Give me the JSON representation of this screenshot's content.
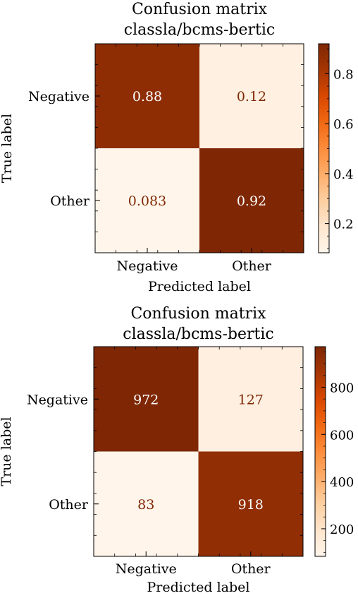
{
  "chart_data": [
    {
      "type": "heatmap",
      "title_lines": [
        "Confusion matrix",
        "classla/bcms-bertic"
      ],
      "xlabel": "Predicted label",
      "ylabel": "True label",
      "x_categories": [
        "Negative",
        "Other"
      ],
      "y_categories": [
        "Negative",
        "Other"
      ],
      "values": [
        [
          0.88,
          0.12
        ],
        [
          0.083,
          0.92
        ]
      ],
      "cell_labels": [
        [
          "0.88",
          "0.12"
        ],
        [
          "0.083",
          "0.92"
        ]
      ],
      "colormap": "Oranges",
      "color_range": [
        0.083,
        0.92
      ],
      "colorbar_ticks": [
        0.2,
        0.4,
        0.6,
        0.8
      ],
      "colorbar_tick_labels": [
        "0.2",
        "0.4",
        "0.6",
        "0.8"
      ],
      "colors": {
        "low": "#fff5eb",
        "high": "#7f2704",
        "text_dark_bg": "#ffffff",
        "text_light_bg": "#7f2704"
      }
    },
    {
      "type": "heatmap",
      "title_lines": [
        "Confusion matrix",
        "classla/bcms-bertic"
      ],
      "xlabel": "Predicted label",
      "ylabel": "True label",
      "x_categories": [
        "Negative",
        "Other"
      ],
      "y_categories": [
        "Negative",
        "Other"
      ],
      "values": [
        [
          972,
          127
        ],
        [
          83,
          918
        ]
      ],
      "cell_labels": [
        [
          "972",
          "127"
        ],
        [
          "83",
          "918"
        ]
      ],
      "colormap": "Oranges",
      "color_range": [
        83,
        972
      ],
      "colorbar_ticks": [
        200,
        400,
        600,
        800
      ],
      "colorbar_tick_labels": [
        "200",
        "400",
        "600",
        "800"
      ],
      "colors": {
        "low": "#fff5eb",
        "high": "#7f2704",
        "text_dark_bg": "#ffffff",
        "text_light_bg": "#7f2704"
      }
    }
  ]
}
